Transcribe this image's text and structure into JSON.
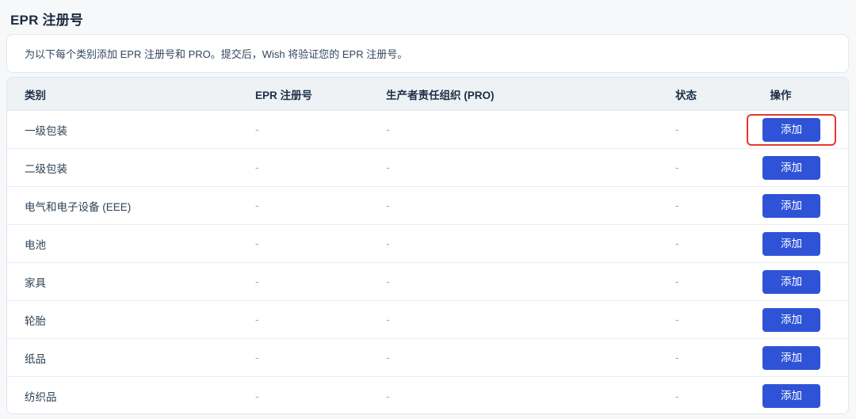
{
  "header": {
    "title_en": "EPR",
    "title_zh": " 注册号"
  },
  "notice": {
    "text": "为以下每个类别添加 EPR 注册号和 PRO。提交后，Wish 将验证您的 EPR 注册号。"
  },
  "table": {
    "columns": [
      "类别",
      "EPR 注册号",
      "生产者责任组织 (PRO)",
      "状态",
      "操作"
    ],
    "rows": [
      {
        "category": "一级包装",
        "epr": "-",
        "pro": "-",
        "status": "-",
        "action": "添加",
        "highlighted": true
      },
      {
        "category": "二级包装",
        "epr": "-",
        "pro": "-",
        "status": "-",
        "action": "添加",
        "highlighted": false
      },
      {
        "category": "电气和电子设备 (EEE)",
        "epr": "-",
        "pro": "-",
        "status": "-",
        "action": "添加",
        "highlighted": false
      },
      {
        "category": "电池",
        "epr": "-",
        "pro": "-",
        "status": "-",
        "action": "添加",
        "highlighted": false
      },
      {
        "category": "家具",
        "epr": "-",
        "pro": "-",
        "status": "-",
        "action": "添加",
        "highlighted": false
      },
      {
        "category": "轮胎",
        "epr": "-",
        "pro": "-",
        "status": "-",
        "action": "添加",
        "highlighted": false
      },
      {
        "category": "纸品",
        "epr": "-",
        "pro": "-",
        "status": "-",
        "action": "添加",
        "highlighted": false
      },
      {
        "category": "纺织品",
        "epr": "-",
        "pro": "-",
        "status": "-",
        "action": "添加",
        "highlighted": false
      }
    ]
  },
  "colors": {
    "accent_blue": "#2f53d7",
    "highlight_red": "#e8382d",
    "header_bg": "#eef2f5",
    "card_border": "#dfe7ee"
  }
}
